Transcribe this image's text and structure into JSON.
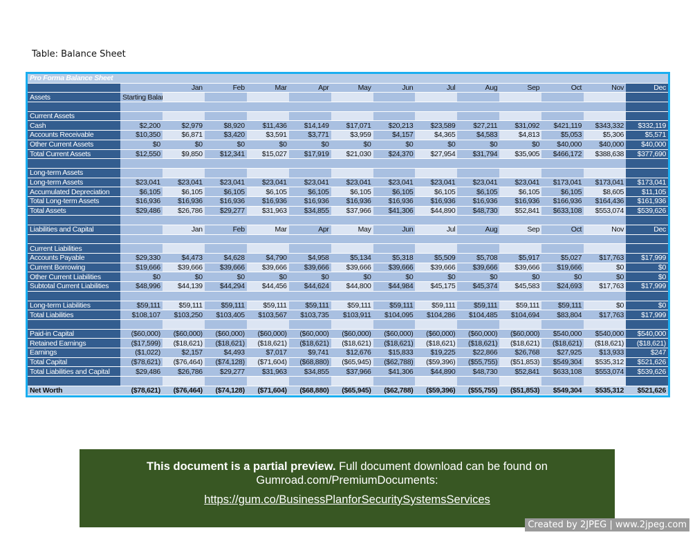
{
  "caption": "Table: Balance Sheet",
  "title": "Pro Forma Balance Sheet",
  "months": [
    "Jan",
    "Feb",
    "Mar",
    "Apr",
    "May",
    "Jun",
    "Jul",
    "Aug",
    "Sep",
    "Oct",
    "Nov",
    "Dec"
  ],
  "rows": [
    {
      "kind": "months",
      "label": ""
    },
    {
      "kind": "label",
      "label": "Assets",
      "start": "Starting Balances"
    },
    {
      "kind": "spacer",
      "label": ""
    },
    {
      "kind": "label",
      "label": "Current Assets"
    },
    {
      "kind": "data",
      "label": "Cash",
      "values": [
        "$2,200",
        "$2,979",
        "$8,920",
        "$11,436",
        "$14,149",
        "$17,071",
        "$20,213",
        "$23,589",
        "$27,211",
        "$31,092",
        "$421,119",
        "$343,332",
        "$332,119"
      ]
    },
    {
      "kind": "data",
      "label": "Accounts Receivable",
      "values": [
        "$10,350",
        "$6,871",
        "$3,420",
        "$3,591",
        "$3,771",
        "$3,959",
        "$4,157",
        "$4,365",
        "$4,583",
        "$4,813",
        "$5,053",
        "$5,306",
        "$5,571"
      ]
    },
    {
      "kind": "data",
      "label": "Other Current Assets",
      "values": [
        "$0",
        "$0",
        "$0",
        "$0",
        "$0",
        "$0",
        "$0",
        "$0",
        "$0",
        "$0",
        "$40,000",
        "$40,000",
        "$40,000"
      ]
    },
    {
      "kind": "data",
      "label": "Total Current Assets",
      "values": [
        "$12,550",
        "$9,850",
        "$12,341",
        "$15,027",
        "$17,919",
        "$21,030",
        "$24,370",
        "$27,954",
        "$31,794",
        "$35,905",
        "$466,172",
        "$388,638",
        "$377,690"
      ]
    },
    {
      "kind": "spacer",
      "label": ""
    },
    {
      "kind": "label",
      "label": "Long-term Assets"
    },
    {
      "kind": "data",
      "label": "Long-term Assets",
      "values": [
        "$23,041",
        "$23,041",
        "$23,041",
        "$23,041",
        "$23,041",
        "$23,041",
        "$23,041",
        "$23,041",
        "$23,041",
        "$23,041",
        "$173,041",
        "$173,041",
        "$173,041"
      ]
    },
    {
      "kind": "data",
      "label": "Accumulated Depreciation",
      "values": [
        "$6,105",
        "$6,105",
        "$6,105",
        "$6,105",
        "$6,105",
        "$6,105",
        "$6,105",
        "$6,105",
        "$6,105",
        "$6,105",
        "$6,105",
        "$8,605",
        "$11,105"
      ]
    },
    {
      "kind": "data",
      "label": "Total Long-term Assets",
      "values": [
        "$16,936",
        "$16,936",
        "$16,936",
        "$16,936",
        "$16,936",
        "$16,936",
        "$16,936",
        "$16,936",
        "$16,936",
        "$16,936",
        "$166,936",
        "$164,436",
        "$161,936"
      ]
    },
    {
      "kind": "data",
      "label": "Total Assets",
      "values": [
        "$29,486",
        "$26,786",
        "$29,277",
        "$31,963",
        "$34,855",
        "$37,966",
        "$41,306",
        "$44,890",
        "$48,730",
        "$52,841",
        "$633,108",
        "$553,074",
        "$539,626"
      ]
    },
    {
      "kind": "spacer",
      "label": ""
    },
    {
      "kind": "months",
      "label": "Liabilities and Capital"
    },
    {
      "kind": "spacer",
      "label": ""
    },
    {
      "kind": "label",
      "label": "Current Liabilities"
    },
    {
      "kind": "data",
      "label": "Accounts Payable",
      "values": [
        "$29,330",
        "$4,473",
        "$4,628",
        "$4,790",
        "$4,958",
        "$5,134",
        "$5,318",
        "$5,509",
        "$5,708",
        "$5,917",
        "$5,027",
        "$17,763",
        "$17,999"
      ]
    },
    {
      "kind": "data",
      "label": "Current Borrowing",
      "values": [
        "$19,666",
        "$39,666",
        "$39,666",
        "$39,666",
        "$39,666",
        "$39,666",
        "$39,666",
        "$39,666",
        "$39,666",
        "$39,666",
        "$19,666",
        "$0",
        "$0"
      ]
    },
    {
      "kind": "data",
      "label": "Other Current Liabilities",
      "values": [
        "$0",
        "$0",
        "$0",
        "$0",
        "$0",
        "$0",
        "$0",
        "$0",
        "$0",
        "$0",
        "$0",
        "$0",
        "$0"
      ]
    },
    {
      "kind": "data",
      "label": "Subtotal Current Liabilities",
      "values": [
        "$48,996",
        "$44,139",
        "$44,294",
        "$44,456",
        "$44,624",
        "$44,800",
        "$44,984",
        "$45,175",
        "$45,374",
        "$45,583",
        "$24,693",
        "$17,763",
        "$17,999"
      ]
    },
    {
      "kind": "spacer",
      "label": ""
    },
    {
      "kind": "data",
      "label": "Long-term Liabilities",
      "values": [
        "$59,111",
        "$59,111",
        "$59,111",
        "$59,111",
        "$59,111",
        "$59,111",
        "$59,111",
        "$59,111",
        "$59,111",
        "$59,111",
        "$59,111",
        "$0",
        "$0"
      ]
    },
    {
      "kind": "data",
      "label": "Total Liabilities",
      "values": [
        "$108,107",
        "$103,250",
        "$103,405",
        "$103,567",
        "$103,735",
        "$103,911",
        "$104,095",
        "$104,286",
        "$104,485",
        "$104,694",
        "$83,804",
        "$17,763",
        "$17,999"
      ]
    },
    {
      "kind": "spacer",
      "label": ""
    },
    {
      "kind": "data",
      "label": "Paid-in Capital",
      "values": [
        "($60,000)",
        "($60,000)",
        "($60,000)",
        "($60,000)",
        "($60,000)",
        "($60,000)",
        "($60,000)",
        "($60,000)",
        "($60,000)",
        "($60,000)",
        "$540,000",
        "$540,000",
        "$540,000"
      ]
    },
    {
      "kind": "data",
      "label": "Retained Earnings",
      "values": [
        "($17,599)",
        "($18,621)",
        "($18,621)",
        "($18,621)",
        "($18,621)",
        "($18,621)",
        "($18,621)",
        "($18,621)",
        "($18,621)",
        "($18,621)",
        "($18,621)",
        "($18,621)",
        "($18,621)"
      ]
    },
    {
      "kind": "data",
      "label": "Earnings",
      "values": [
        "($1,022)",
        "$2,157",
        "$4,493",
        "$7,017",
        "$9,741",
        "$12,676",
        "$15,833",
        "$19,225",
        "$22,866",
        "$26,768",
        "$27,925",
        "$13,933",
        "$247"
      ]
    },
    {
      "kind": "data",
      "label": "Total Capital",
      "values": [
        "($78,621)",
        "($76,464)",
        "($74,128)",
        "($71,604)",
        "($68,880)",
        "($65,945)",
        "($62,788)",
        "($59,396)",
        "($55,755)",
        "($51,853)",
        "$549,304",
        "$535,312",
        "$521,626"
      ]
    },
    {
      "kind": "data",
      "label": "Total Liabilities and Capital",
      "values": [
        "$29,486",
        "$26,786",
        "$29,277",
        "$31,963",
        "$34,855",
        "$37,966",
        "$41,306",
        "$44,890",
        "$48,730",
        "$52,841",
        "$633,108",
        "$553,074",
        "$539,626"
      ]
    },
    {
      "kind": "spacer",
      "label": ""
    },
    {
      "kind": "net",
      "label": "Net Worth",
      "values": [
        "($78,621)",
        "($76,464)",
        "($74,128)",
        "($71,604)",
        "($68,880)",
        "($65,945)",
        "($62,788)",
        "($59,396)",
        "($55,755)",
        "($51,853)",
        "$549,304",
        "$535,312",
        "$521,626"
      ]
    }
  ],
  "banner": {
    "bold": "This document is a partial preview.",
    "text": " Full document download can be found on Gumroad.com/PremiumDocuments:",
    "link": "https://gum.co/BusinessPlanforSecuritySystemsServices"
  },
  "footer": "Created by 2JPEG | www.2jpeg.com"
}
